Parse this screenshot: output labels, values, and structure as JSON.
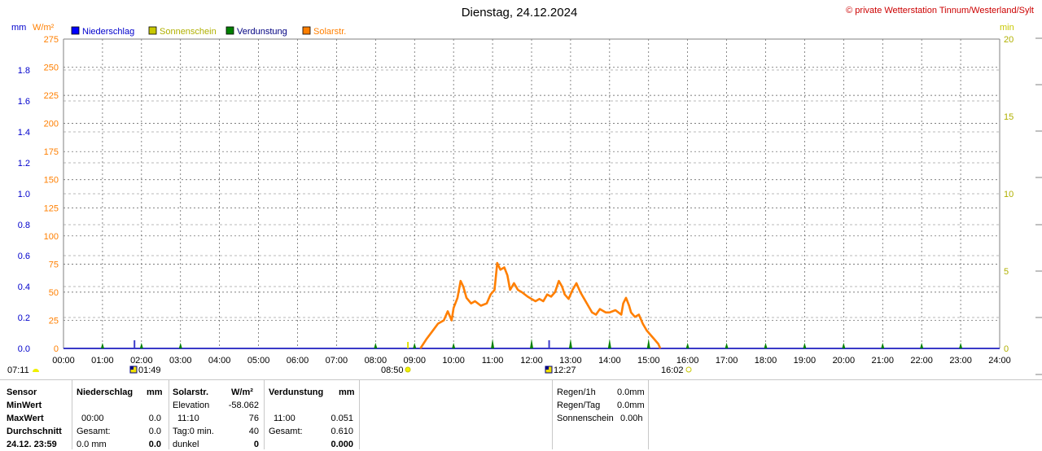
{
  "header": {
    "title": "Dienstag, 24.12.2024",
    "copyright": "© private Wetterstation Tinnum/Westerland/Sylt"
  },
  "chart_data": {
    "type": "line",
    "title": "Dienstag, 24.12.2024",
    "left_axis_units": [
      "mm",
      "W/m²"
    ],
    "right_axis_unit": "min",
    "y_mm": {
      "range": [
        0,
        2.0
      ],
      "ticks": [
        "0.0",
        "0.2",
        "0.4",
        "0.6",
        "0.8",
        "1.0",
        "1.2",
        "1.4",
        "1.6",
        "1.8"
      ]
    },
    "y_wm2": {
      "range": [
        0,
        275
      ],
      "ticks": [
        "0",
        "25",
        "50",
        "75",
        "100",
        "125",
        "150",
        "175",
        "200",
        "225",
        "250",
        "275"
      ]
    },
    "y_min": {
      "range": [
        0,
        20
      ],
      "ticks": [
        "0",
        "5",
        "10",
        "15",
        "20"
      ]
    },
    "x_ticks": [
      "00:00",
      "01:00",
      "02:00",
      "03:00",
      "04:00",
      "05:00",
      "06:00",
      "07:00",
      "08:00",
      "09:00",
      "10:00",
      "11:00",
      "12:00",
      "13:00",
      "14:00",
      "15:00",
      "16:00",
      "17:00",
      "18:00",
      "19:00",
      "20:00",
      "21:00",
      "22:00",
      "23:00",
      "24:00"
    ],
    "grid": true,
    "legend": [
      {
        "name": "Niederschlag",
        "color": "#0000ff"
      },
      {
        "name": "Sonnenschein",
        "color": "#c8c800"
      },
      {
        "name": "Verdunstung",
        "color": "#008000"
      },
      {
        "name": "Solarstr.",
        "color": "#ff7f00"
      }
    ],
    "series": [
      {
        "name": "Solarstr.",
        "color": "#ff7f00",
        "points": [
          [
            9.15,
            0
          ],
          [
            9.3,
            8
          ],
          [
            9.45,
            15
          ],
          [
            9.6,
            22
          ],
          [
            9.75,
            25
          ],
          [
            9.85,
            33
          ],
          [
            9.95,
            25
          ],
          [
            10.0,
            36
          ],
          [
            10.1,
            45
          ],
          [
            10.18,
            60
          ],
          [
            10.25,
            55
          ],
          [
            10.33,
            45
          ],
          [
            10.45,
            40
          ],
          [
            10.55,
            42
          ],
          [
            10.7,
            38
          ],
          [
            10.85,
            40
          ],
          [
            10.95,
            48
          ],
          [
            11.05,
            52
          ],
          [
            11.12,
            76
          ],
          [
            11.2,
            70
          ],
          [
            11.3,
            72
          ],
          [
            11.38,
            65
          ],
          [
            11.45,
            52
          ],
          [
            11.55,
            58
          ],
          [
            11.65,
            52
          ],
          [
            11.75,
            50
          ],
          [
            11.9,
            46
          ],
          [
            12.0,
            44
          ],
          [
            12.1,
            42
          ],
          [
            12.2,
            44
          ],
          [
            12.3,
            42
          ],
          [
            12.4,
            48
          ],
          [
            12.5,
            46
          ],
          [
            12.6,
            50
          ],
          [
            12.7,
            60
          ],
          [
            12.78,
            55
          ],
          [
            12.85,
            48
          ],
          [
            12.95,
            44
          ],
          [
            13.05,
            52
          ],
          [
            13.15,
            58
          ],
          [
            13.25,
            50
          ],
          [
            13.35,
            44
          ],
          [
            13.45,
            38
          ],
          [
            13.55,
            32
          ],
          [
            13.65,
            30
          ],
          [
            13.75,
            35
          ],
          [
            13.9,
            32
          ],
          [
            14.0,
            32
          ],
          [
            14.15,
            34
          ],
          [
            14.3,
            30
          ],
          [
            14.35,
            40
          ],
          [
            14.42,
            45
          ],
          [
            14.5,
            38
          ],
          [
            14.55,
            32
          ],
          [
            14.65,
            28
          ],
          [
            14.75,
            30
          ],
          [
            14.85,
            22
          ],
          [
            14.95,
            16
          ],
          [
            15.05,
            12
          ],
          [
            15.15,
            8
          ],
          [
            15.25,
            4
          ],
          [
            15.3,
            0
          ]
        ]
      },
      {
        "name": "Verdunstung",
        "color": "#008000",
        "markers_hours": [
          1,
          2,
          3,
          8,
          9,
          10,
          11,
          12,
          13,
          14,
          15,
          16,
          17,
          18,
          19,
          20,
          21,
          22,
          23
        ]
      }
    ],
    "below_axis": [
      {
        "time": "07:11",
        "symbol": "sunrise"
      },
      {
        "time": "01:49",
        "symbol": "moon"
      },
      {
        "time": "08:50",
        "symbol": "sun"
      },
      {
        "time": "12:27",
        "symbol": "moon"
      },
      {
        "time": "16:02",
        "symbol": "sunset"
      }
    ]
  },
  "table": {
    "col1": {
      "h": "Sensor",
      "r1": "MinWert",
      "r2": "MaxWert",
      "r3": "Durchschnitt",
      "r4": "24.12. 23:59"
    },
    "niederschlag": {
      "h": "Niederschlag",
      "unit": "mm",
      "r2a": "00:00",
      "r2b": "0.0",
      "r3a": "Gesamt:",
      "r3b": "0.0",
      "r4a": "0.0 mm",
      "r4b": "0.0"
    },
    "solar": {
      "h": "Solarstr.",
      "unit": "W/m²",
      "r1a": "Elevation",
      "r1b": "-58.062",
      "r2a": "11:10",
      "r2b": "76",
      "r3a": "Tag:0 min.",
      "r3b": "40",
      "r4a": "dunkel",
      "r4b": "0"
    },
    "verdunstung": {
      "h": "Verdunstung",
      "unit": "mm",
      "r2a": "11:00",
      "r2b": "0.051",
      "r3a": "Gesamt:",
      "r3b": "0.610",
      "r4b": "0.000"
    },
    "rain": {
      "l1": "Regen/1h",
      "v1": "0.0mm",
      "l2": "Regen/Tag",
      "v2": "0.0mm",
      "l3": "Sonnenschein",
      "v3": "0.00h"
    }
  }
}
